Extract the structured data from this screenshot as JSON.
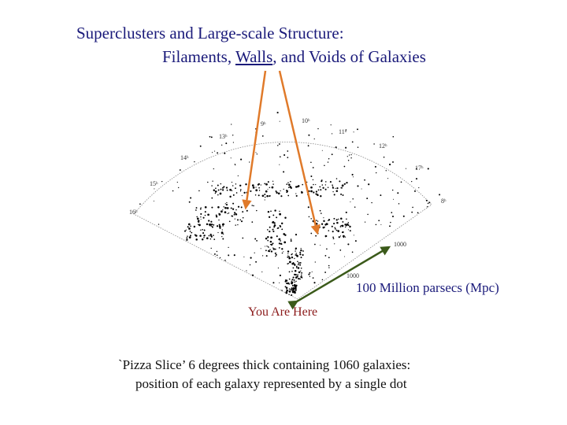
{
  "title": {
    "line1": "Superclusters and Large-scale Structure:",
    "line2_pre": "Filaments, ",
    "line2_walls": "Walls",
    "line2_post": ", and Voids of Galaxies"
  },
  "fan_labels": {
    "ra": [
      "9ʰ",
      "10ʰ",
      "11ʰ",
      "12ʰ",
      "13ʰ",
      "14ʰ",
      "15ʰ",
      "16ʰ",
      "17ʰ",
      "8ʰ"
    ],
    "radial": [
      "1000",
      "1000"
    ]
  },
  "scale_label": "100 Million parsecs (Mpc)",
  "here_label": "You Are Here",
  "caption": {
    "line1": "`Pizza Slice’ 6 degrees thick containing 1060 galaxies:",
    "line2": "position of each galaxy represented by a single dot"
  },
  "colors": {
    "title": "#1a1a7a",
    "orange_arrow": "#e07a2a",
    "green_arrow": "#3b5a1a",
    "here_text": "#8b1a1a"
  }
}
